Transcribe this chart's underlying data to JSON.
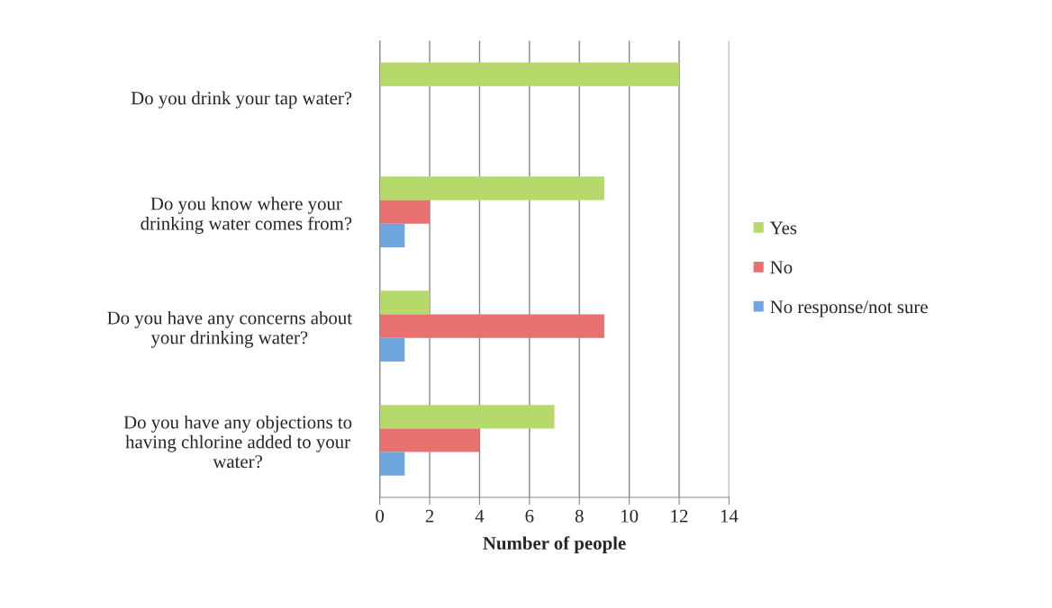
{
  "chart_data": {
    "type": "bar",
    "orientation": "horizontal",
    "xlabel": "Number of people",
    "categories": [
      "Do you drink your tap water?",
      "Do you know where your\ndrinking water comes from?",
      "Do you have any concerns about\nyour drinking water?",
      "Do you have any objections to\nhaving chlorine added to your\nwater?"
    ],
    "series": [
      {
        "name": "Yes",
        "color": "#b5d96b",
        "values": [
          12,
          9,
          2,
          7
        ]
      },
      {
        "name": "No",
        "color": "#e8706e",
        "values": [
          0,
          2,
          9,
          4
        ]
      },
      {
        "name": "No response/not sure",
        "color": "#6fa6de",
        "values": [
          0,
          1,
          1,
          1
        ]
      }
    ],
    "xlim": [
      0,
      14
    ],
    "xticks": [
      0,
      2,
      4,
      6,
      8,
      10,
      12,
      14
    ],
    "grid": "x",
    "legend": "right"
  }
}
